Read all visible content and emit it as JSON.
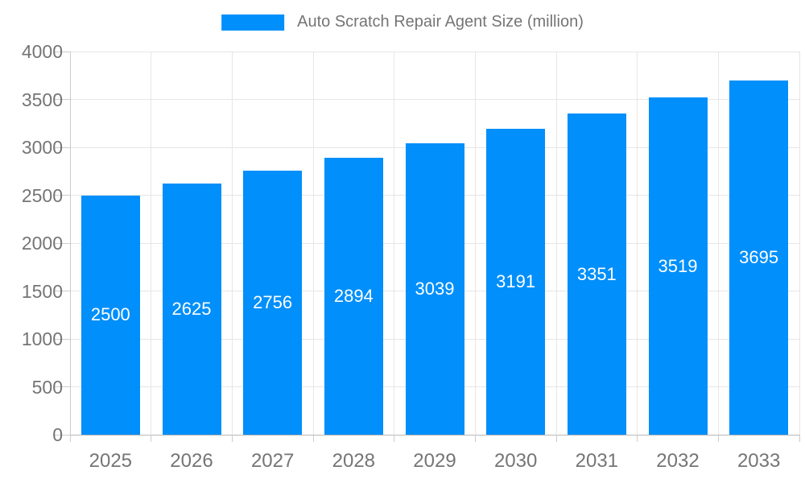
{
  "legend": {
    "label": "Auto Scratch Repair Agent Size (million)"
  },
  "colors": {
    "bar": "#008FFB",
    "bar_label": "#ffffff",
    "axis_label": "#757575",
    "legend_text": "#757575",
    "gridline": "#e6e6e6",
    "axis_edge": "#cccccc",
    "tick": "#cccccc",
    "baseline": "#b7b7b7",
    "background": "#ffffff"
  },
  "chart_data": {
    "type": "bar",
    "title": "Auto Scratch Repair Agent Size (million)",
    "xlabel": "",
    "ylabel": "",
    "categories": [
      "2025",
      "2026",
      "2027",
      "2028",
      "2029",
      "2030",
      "2031",
      "2032",
      "2033"
    ],
    "series": [
      {
        "name": "Auto Scratch Repair Agent Size (million)",
        "color": "#008FFB",
        "values": [
          2500,
          2625,
          2756,
          2894,
          3039,
          3191,
          3351,
          3519,
          3695
        ]
      }
    ],
    "data_labels": {
      "visible": true,
      "position": "inside-center",
      "color": "#ffffff"
    },
    "ylim": [
      0,
      4000
    ],
    "ytick_step": 500,
    "yticks": [
      0,
      500,
      1000,
      1500,
      2000,
      2500,
      3000,
      3500,
      4000
    ],
    "grid": true,
    "vertical_gridlines": true,
    "legend_position": "top"
  }
}
